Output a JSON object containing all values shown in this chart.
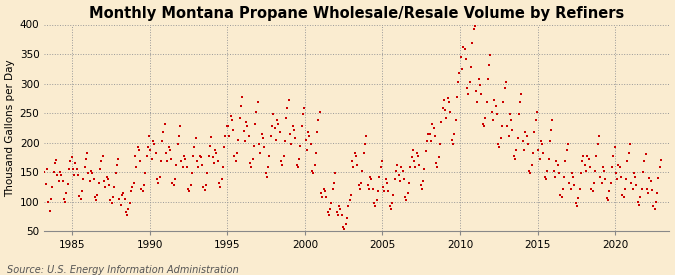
{
  "title": "Monthly Montana Propane Wholesale/Resale Volume by Refiners",
  "ylabel": "Thousand Gallons per Day",
  "source": "Source: U.S. Energy Information Administration",
  "background_color": "#faecd0",
  "dot_color": "#cc0000",
  "xlim": [
    1983.2,
    2023.5
  ],
  "ylim": [
    50,
    400
  ],
  "yticks": [
    50,
    100,
    150,
    200,
    250,
    300,
    350,
    400
  ],
  "xticks": [
    1985,
    1990,
    1995,
    2000,
    2005,
    2010,
    2015,
    2020
  ],
  "title_fontsize": 10.5,
  "label_fontsize": 7.5,
  "tick_fontsize": 7.5,
  "source_fontsize": 7,
  "start_year": 1983,
  "monthly_data": [
    110,
    160,
    150,
    130,
    155,
    100,
    85,
    105,
    125,
    150,
    165,
    170,
    145,
    135,
    150,
    145,
    135,
    105,
    100,
    115,
    130,
    155,
    168,
    175,
    155,
    145,
    165,
    155,
    145,
    110,
    105,
    118,
    138,
    158,
    172,
    182,
    148,
    135,
    152,
    148,
    138,
    108,
    102,
    112,
    132,
    155,
    168,
    178,
    135,
    125,
    142,
    138,
    128,
    102,
    97,
    108,
    125,
    148,
    162,
    172,
    105,
    95,
    112,
    115,
    105,
    82,
    77,
    88,
    98,
    118,
    125,
    132,
    178,
    158,
    192,
    188,
    168,
    122,
    118,
    128,
    148,
    178,
    192,
    212,
    188,
    172,
    202,
    198,
    182,
    138,
    132,
    142,
    168,
    202,
    218,
    232,
    182,
    168,
    192,
    188,
    172,
    132,
    128,
    138,
    162,
    198,
    212,
    228,
    168,
    158,
    178,
    172,
    158,
    122,
    118,
    128,
    148,
    178,
    192,
    208,
    168,
    158,
    178,
    175,
    162,
    125,
    120,
    128,
    148,
    178,
    195,
    210,
    175,
    165,
    188,
    182,
    168,
    132,
    125,
    138,
    158,
    192,
    212,
    228,
    228,
    212,
    245,
    238,
    222,
    178,
    168,
    182,
    205,
    242,
    262,
    278,
    220,
    202,
    235,
    228,
    212,
    165,
    158,
    172,
    195,
    232,
    252,
    268,
    198,
    182,
    215,
    208,
    192,
    148,
    142,
    158,
    178,
    212,
    228,
    248,
    225,
    205,
    238,
    232,
    218,
    168,
    162,
    178,
    202,
    242,
    258,
    272,
    215,
    198,
    228,
    222,
    208,
    162,
    158,
    172,
    195,
    228,
    248,
    258,
    205,
    188,
    218,
    212,
    198,
    152,
    148,
    162,
    182,
    218,
    238,
    252,
    115,
    108,
    122,
    118,
    108,
    83,
    78,
    88,
    98,
    122,
    132,
    148,
    82,
    78,
    92,
    88,
    78,
    57,
    53,
    62,
    72,
    92,
    102,
    112,
    168,
    158,
    182,
    178,
    162,
    128,
    122,
    132,
    152,
    182,
    198,
    212,
    128,
    122,
    142,
    138,
    122,
    97,
    92,
    102,
    118,
    142,
    158,
    168,
    125,
    118,
    138,
    132,
    118,
    92,
    88,
    98,
    112,
    138,
    152,
    162,
    145,
    135,
    158,
    152,
    138,
    108,
    102,
    115,
    132,
    158,
    175,
    188,
    168,
    158,
    182,
    178,
    162,
    128,
    122,
    135,
    155,
    185,
    202,
    215,
    215,
    202,
    232,
    225,
    212,
    165,
    158,
    175,
    198,
    235,
    258,
    272,
    255,
    242,
    275,
    268,
    252,
    205,
    198,
    215,
    238,
    278,
    302,
    318,
    345,
    325,
    362,
    358,
    342,
    292,
    282,
    302,
    328,
    368,
    392,
    398,
    288,
    268,
    308,
    298,
    282,
    232,
    228,
    242,
    268,
    308,
    332,
    348,
    252,
    238,
    272,
    262,
    248,
    198,
    192,
    208,
    228,
    268,
    292,
    302,
    228,
    212,
    248,
    238,
    222,
    178,
    172,
    188,
    208,
    248,
    268,
    282,
    202,
    188,
    218,
    212,
    198,
    152,
    148,
    162,
    182,
    218,
    238,
    252,
    188,
    172,
    202,
    198,
    182,
    142,
    138,
    152,
    172,
    202,
    222,
    238,
    152,
    142,
    168,
    162,
    148,
    112,
    108,
    122,
    142,
    168,
    188,
    198,
    132,
    122,
    148,
    142,
    128,
    97,
    92,
    107,
    122,
    148,
    168,
    178,
    162,
    152,
    178,
    172,
    158,
    122,
    118,
    132,
    152,
    178,
    198,
    212,
    142,
    132,
    158,
    152,
    138,
    107,
    102,
    118,
    132,
    158,
    178,
    192,
    148,
    138,
    162,
    158,
    142,
    112,
    108,
    122,
    138,
    168,
    182,
    198,
    132,
    122,
    148,
    142,
    128,
    100,
    94,
    108,
    122,
    150,
    168,
    180,
    122,
    114,
    140,
    135,
    120,
    92,
    87,
    100,
    114,
    140,
    158,
    170
  ]
}
